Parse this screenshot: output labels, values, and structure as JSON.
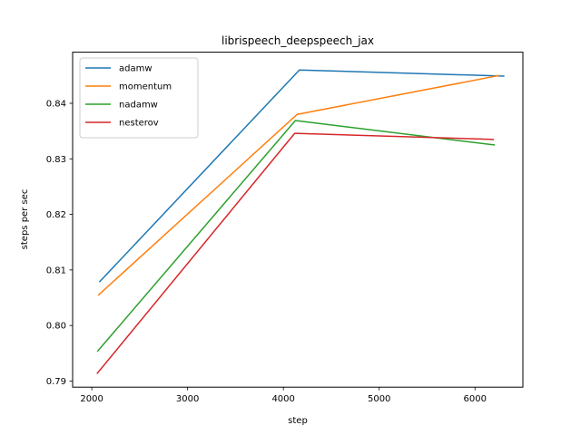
{
  "chart_data": {
    "type": "line",
    "title": "librispeech_deepspeech_jax",
    "xlabel": "step",
    "ylabel": "steps per sec",
    "xlim": [
      1800,
      6500
    ],
    "ylim": [
      0.7889,
      0.8492
    ],
    "xticks": [
      2000,
      3000,
      4000,
      5000,
      6000
    ],
    "xtick_labels": [
      "2000",
      "3000",
      "4000",
      "5000",
      "6000"
    ],
    "yticks": [
      0.79,
      0.8,
      0.81,
      0.82,
      0.83,
      0.84
    ],
    "ytick_labels": [
      "0.79",
      "0.80",
      "0.81",
      "0.82",
      "0.83",
      "0.84"
    ],
    "grid": false,
    "legend_position": "top-left",
    "series": [
      {
        "name": "adamw",
        "color": "#1f77b4",
        "x": [
          2083,
          4167,
          6300
        ],
        "y": [
          0.8079,
          0.846,
          0.8449
        ]
      },
      {
        "name": "momentum",
        "color": "#ff7f0e",
        "x": [
          2071,
          4143,
          6250
        ],
        "y": [
          0.8055,
          0.838,
          0.845
        ]
      },
      {
        "name": "nadamw",
        "color": "#2ca02c",
        "x": [
          2062,
          4125,
          6200
        ],
        "y": [
          0.7954,
          0.8369,
          0.8325
        ]
      },
      {
        "name": "nesterov",
        "color": "#d62728",
        "x": [
          2058,
          4118,
          6190
        ],
        "y": [
          0.7914,
          0.8346,
          0.8335
        ]
      }
    ]
  }
}
